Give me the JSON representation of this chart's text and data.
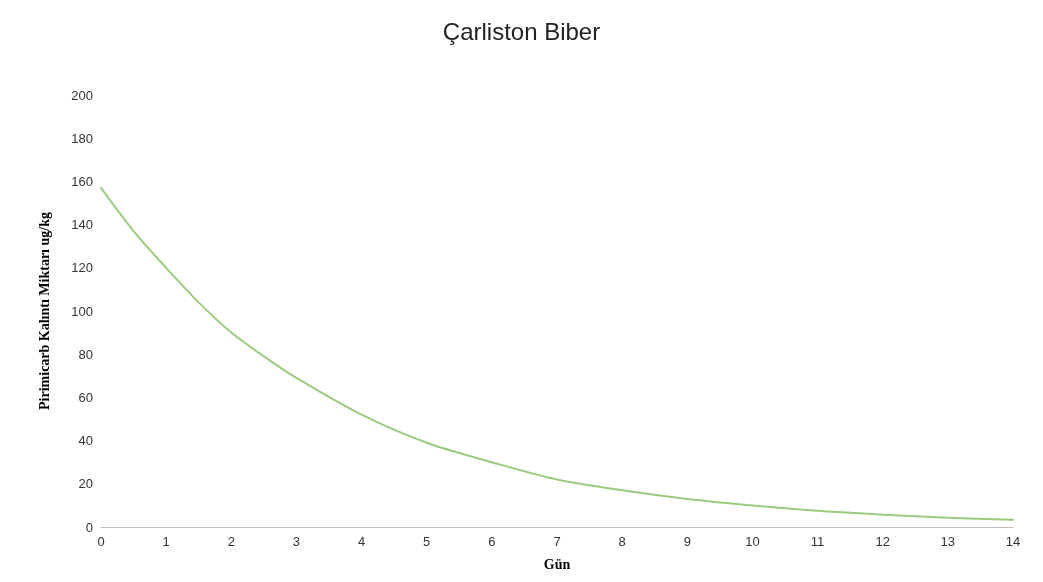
{
  "chart_data": {
    "type": "line",
    "title": "Çarliston Biber",
    "xlabel": "Gün",
    "ylabel": "Pirimicarb Kalıntı Miktarı ug/kg",
    "x": [
      0,
      0.5,
      1,
      1.5,
      2,
      2.5,
      3,
      4,
      5,
      6,
      7,
      8,
      9,
      10,
      11,
      12,
      13,
      14
    ],
    "series": [
      {
        "color": "#9bcb7f",
        "values": [
          157,
          137,
          120,
          104,
          90,
          79,
          69,
          52,
          39,
          30,
          22,
          17,
          13,
          10,
          7.5,
          5.7,
          4.3,
          3.3
        ]
      }
    ],
    "xlim": [
      0,
      14
    ],
    "xticks": [
      0,
      1,
      2,
      3,
      4,
      5,
      6,
      7,
      8,
      9,
      10,
      11,
      12,
      13,
      14
    ],
    "ylim": [
      0,
      200
    ],
    "yticks": [
      0,
      20,
      40,
      60,
      80,
      100,
      120,
      140,
      160,
      180,
      200
    ],
    "grid": false,
    "marker": "none",
    "line_style": "solid"
  }
}
